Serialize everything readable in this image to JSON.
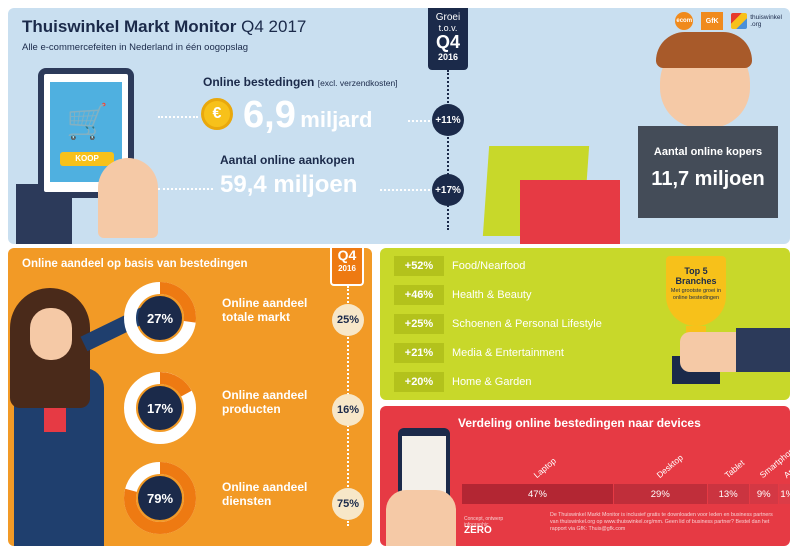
{
  "header": {
    "title_main": "Thuiswinkel Markt Monitor",
    "title_quarter": "Q4 2017",
    "subtitle": "Alle e-commercefeiten in Nederland in één oogopslag"
  },
  "logos": {
    "logo1": "ecom",
    "logo2": "GfK",
    "logo3_line1": "thuiswinkel",
    "logo3_line2": ".org"
  },
  "growth_banner": {
    "line1": "Groei",
    "line2": "t.o.v.",
    "line3": "Q4",
    "line4": "2016"
  },
  "top": {
    "tablet_button": "KOOP",
    "coin_symbol": "€",
    "spend_label": "Online bestedingen",
    "spend_note": "[excl. verzendkosten]",
    "spend_value": "6,9",
    "spend_unit": "miljard",
    "spend_growth": "+11%",
    "purchases_label": "Aantal online aankopen",
    "purchases_value": "59,4 miljoen",
    "purchases_growth": "+17%",
    "buyers_label": "Aantal online kopers",
    "buyers_value": "11,7 miljoen"
  },
  "share": {
    "title": "Online aandeel op basis van bestedingen",
    "badge_q4": "Q4",
    "badge_year": "2016",
    "rows": [
      {
        "pct": "27%",
        "label1": "Online aandeel",
        "label2": "totale markt",
        "prev": "25%",
        "fraction": 0.27
      },
      {
        "pct": "17%",
        "label1": "Online aandeel",
        "label2": "producten",
        "prev": "16%",
        "fraction": 0.17
      },
      {
        "pct": "79%",
        "label1": "Online aandeel",
        "label2": "diensten",
        "prev": "75%",
        "fraction": 0.79
      }
    ]
  },
  "branches": {
    "trophy_title1": "Top 5",
    "trophy_title2": "Branches",
    "trophy_sub": "Met grootste groei in online bestedingen",
    "items": [
      {
        "pct": "+52%",
        "name": "Food/Nearfood"
      },
      {
        "pct": "+46%",
        "name": "Health & Beauty"
      },
      {
        "pct": "+25%",
        "name": "Schoenen & Personal Lifestyle"
      },
      {
        "pct": "+21%",
        "name": "Media & Entertainment"
      },
      {
        "pct": "+20%",
        "name": "Home & Garden"
      }
    ]
  },
  "devices": {
    "title": "Verdeling online bestedingen naar devices",
    "segments": [
      {
        "name": "Laptop",
        "pct": "47%",
        "value": 47,
        "color": "#b52a34"
      },
      {
        "name": "Desktop",
        "pct": "29%",
        "value": 29,
        "color": "#b52a34"
      },
      {
        "name": "Tablet",
        "pct": "13%",
        "value": 13,
        "color": "#b52a34"
      },
      {
        "name": "Smartphone",
        "pct": "9%",
        "value": 9,
        "color": "#b52a34"
      },
      {
        "name": "Ander device",
        "pct": "1%",
        "value": 1,
        "color": "#b52a34"
      }
    ],
    "credit_line1": "Concept, ontwerp",
    "credit_line2": "infographic",
    "credit_logo": "ZERO",
    "footnote": "De Thuiswinkel Markt Monitor is inclusief gratis te downloaden voor leden en business partners van thuiswinkel.org op www.thuiswinkel.org/mm. Geen lid of business partner? Bestel dan het rapport via GfK: Thuis@gfk.com"
  }
}
